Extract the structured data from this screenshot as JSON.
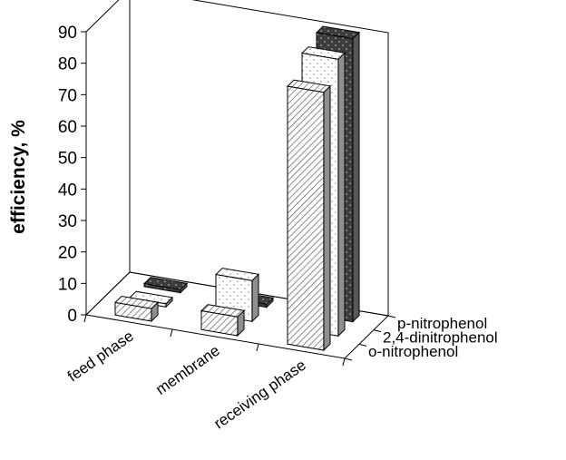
{
  "chart_data": {
    "type": "bar",
    "style": "3d-grouped",
    "ylabel": "efficiency, %",
    "ylim": [
      0,
      90
    ],
    "yticks": [
      0,
      10,
      20,
      30,
      40,
      50,
      60,
      70,
      80,
      90
    ],
    "categories": [
      "feed phase",
      "membrane",
      "receiving phase"
    ],
    "series": [
      {
        "name": "o-nitrophenol",
        "values": [
          4,
          6,
          82
        ],
        "color": "#c8c8c8",
        "pattern": "hatch-diagonal"
      },
      {
        "name": "2,4-dinitrophenol",
        "values": [
          1,
          13,
          88
        ],
        "color": "#ffffff",
        "pattern": "dots"
      },
      {
        "name": "p-nitrophenol",
        "values": [
          1,
          1,
          90
        ],
        "color": "#3a3a3a",
        "pattern": "dots-on-dark"
      }
    ],
    "grid": false,
    "legend": "depth-axis-right"
  }
}
